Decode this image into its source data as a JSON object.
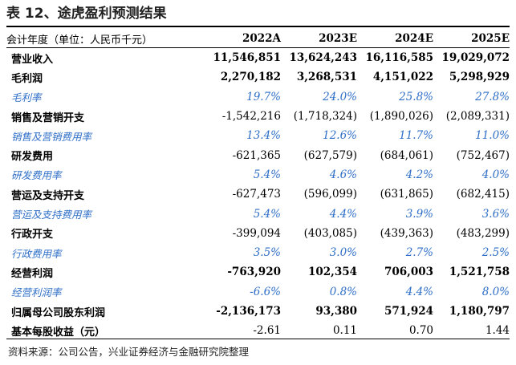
{
  "title": "表 12、途虎盈利预测结果",
  "table": {
    "header": [
      "会计年度（单位：人民币千元）",
      "2022A",
      "2023E",
      "2024E",
      "2025E"
    ],
    "rows": [
      {
        "label": "营业收入",
        "style": "bold",
        "values": [
          "11,546,851",
          "13,624,243",
          "16,116,585",
          "19,029,072"
        ]
      },
      {
        "label": "毛利润",
        "style": "bold",
        "values": [
          "2,270,182",
          "3,268,531",
          "4,151,022",
          "5,298,929"
        ]
      },
      {
        "label": "毛利率",
        "style": "pct",
        "values": [
          "19.7%",
          "24.0%",
          "25.8%",
          "27.8%"
        ]
      },
      {
        "label": "销售及营销开支",
        "style": "bold-label",
        "values": [
          "-1,542,216",
          "(1,718,324)",
          "(1,890,026)",
          "(2,089,331)"
        ]
      },
      {
        "label": "销售及营销费用率",
        "style": "pct",
        "values": [
          "13.4%",
          "12.6%",
          "11.7%",
          "11.0%"
        ]
      },
      {
        "label": "研发费用",
        "style": "bold-label",
        "values": [
          "-621,365",
          "(627,579)",
          "(684,061)",
          "(752,467)"
        ]
      },
      {
        "label": "研发费用率",
        "style": "pct",
        "values": [
          "5.4%",
          "4.6%",
          "4.2%",
          "4.0%"
        ]
      },
      {
        "label": "营运及支持开支",
        "style": "bold-label",
        "values": [
          "-627,473",
          "(596,099)",
          "(631,865)",
          "(682,415)"
        ]
      },
      {
        "label": "营运及支持费用率",
        "style": "pct",
        "values": [
          "5.4%",
          "4.4%",
          "3.9%",
          "3.6%"
        ]
      },
      {
        "label": "行政开支",
        "style": "bold-label",
        "values": [
          "-399,094",
          "(403,085)",
          "(439,363)",
          "(483,299)"
        ]
      },
      {
        "label": "行政费用率",
        "style": "pct",
        "values": [
          "3.5%",
          "3.0%",
          "2.7%",
          "2.5%"
        ]
      },
      {
        "label": "经营利润",
        "style": "bold",
        "values": [
          "-763,920",
          "102,354",
          "706,003",
          "1,521,758"
        ]
      },
      {
        "label": "经营利润率",
        "style": "pct",
        "values": [
          "-6.6%",
          "0.8%",
          "4.4%",
          "8.0%"
        ]
      },
      {
        "label": "归属母公司股东利润",
        "style": "bold",
        "values": [
          "-2,136,173",
          "93,380",
          "571,924",
          "1,180,797"
        ]
      },
      {
        "label": "基本每股收益（元）",
        "style": "bold-label",
        "values": [
          "-2.61",
          "0.11",
          "0.70",
          "1.44"
        ]
      }
    ]
  },
  "source": "资料来源：公司公告，兴业证券经济与金融研究院整理"
}
